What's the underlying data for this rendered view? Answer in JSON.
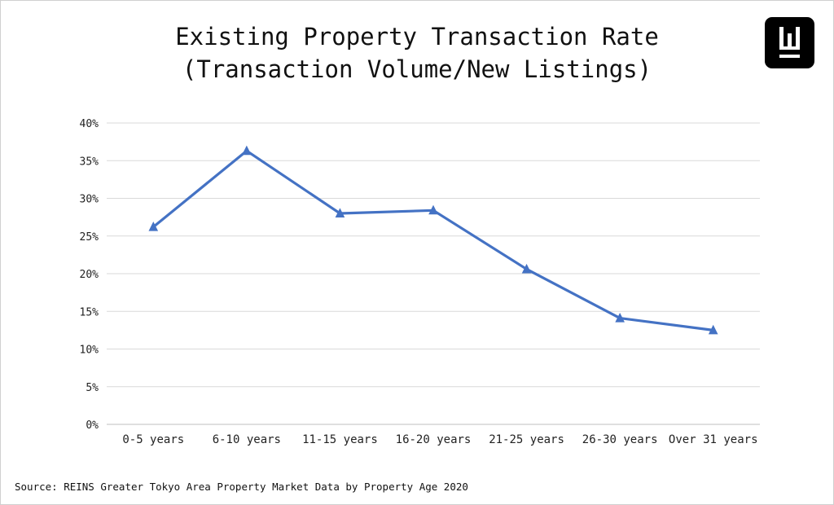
{
  "title_line1": "Existing Property Transaction Rate",
  "title_line2": "(Transaction Volume/New Listings)",
  "source": "Source: REINS Greater Tokyo Area Property Market Data by Property Age 2020",
  "logo": {
    "icon": "w-logo-icon",
    "letter": "W",
    "bg_color": "#000000",
    "fg_color": "#ffffff"
  },
  "chart_data": {
    "type": "line",
    "categories": [
      "0-5 years",
      "6-10 years",
      "11-15 years",
      "16-20 years",
      "21-25 years",
      "26-30 years",
      "Over 31 years"
    ],
    "series": [
      {
        "values": [
          26.2,
          36.3,
          28.0,
          28.4,
          20.6,
          14.1,
          12.5
        ],
        "color": "#4472C4",
        "marker": "triangle"
      }
    ],
    "title": "Existing Property Transaction Rate (Transaction Volume/New Listings)",
    "xlabel": "",
    "ylabel": "",
    "ylim": [
      0,
      40
    ],
    "yticks": [
      "0%",
      "5%",
      "10%",
      "15%",
      "20%",
      "25%",
      "30%",
      "35%",
      "40%"
    ],
    "grid": true,
    "legend": "none"
  }
}
